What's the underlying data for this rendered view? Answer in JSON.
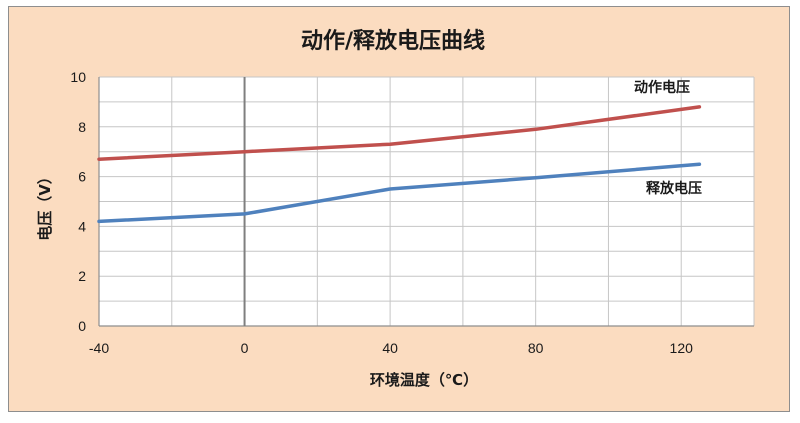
{
  "chart_data": {
    "type": "line",
    "title": "动作/释放电压曲线",
    "xlabel": "环境温度（℃）",
    "ylabel": "电压（V）",
    "xlim": [
      -40,
      140
    ],
    "ylim": [
      0,
      10
    ],
    "x_ticks": [
      "-40",
      "0",
      "40",
      "80",
      "120"
    ],
    "y_ticks": [
      "0",
      "2",
      "4",
      "6",
      "8",
      "10"
    ],
    "grid": true,
    "series": [
      {
        "name": "动作电压",
        "color": "#c0504d",
        "points": [
          [
            -40,
            6.7
          ],
          [
            0,
            7.0
          ],
          [
            40,
            7.3
          ],
          [
            80,
            7.9
          ],
          [
            125,
            8.8
          ]
        ]
      },
      {
        "name": "释放电压",
        "color": "#4f81bd",
        "points": [
          [
            -40,
            4.2
          ],
          [
            0,
            4.5
          ],
          [
            40,
            5.5
          ],
          [
            80,
            5.95
          ],
          [
            125,
            6.5
          ]
        ]
      }
    ]
  }
}
